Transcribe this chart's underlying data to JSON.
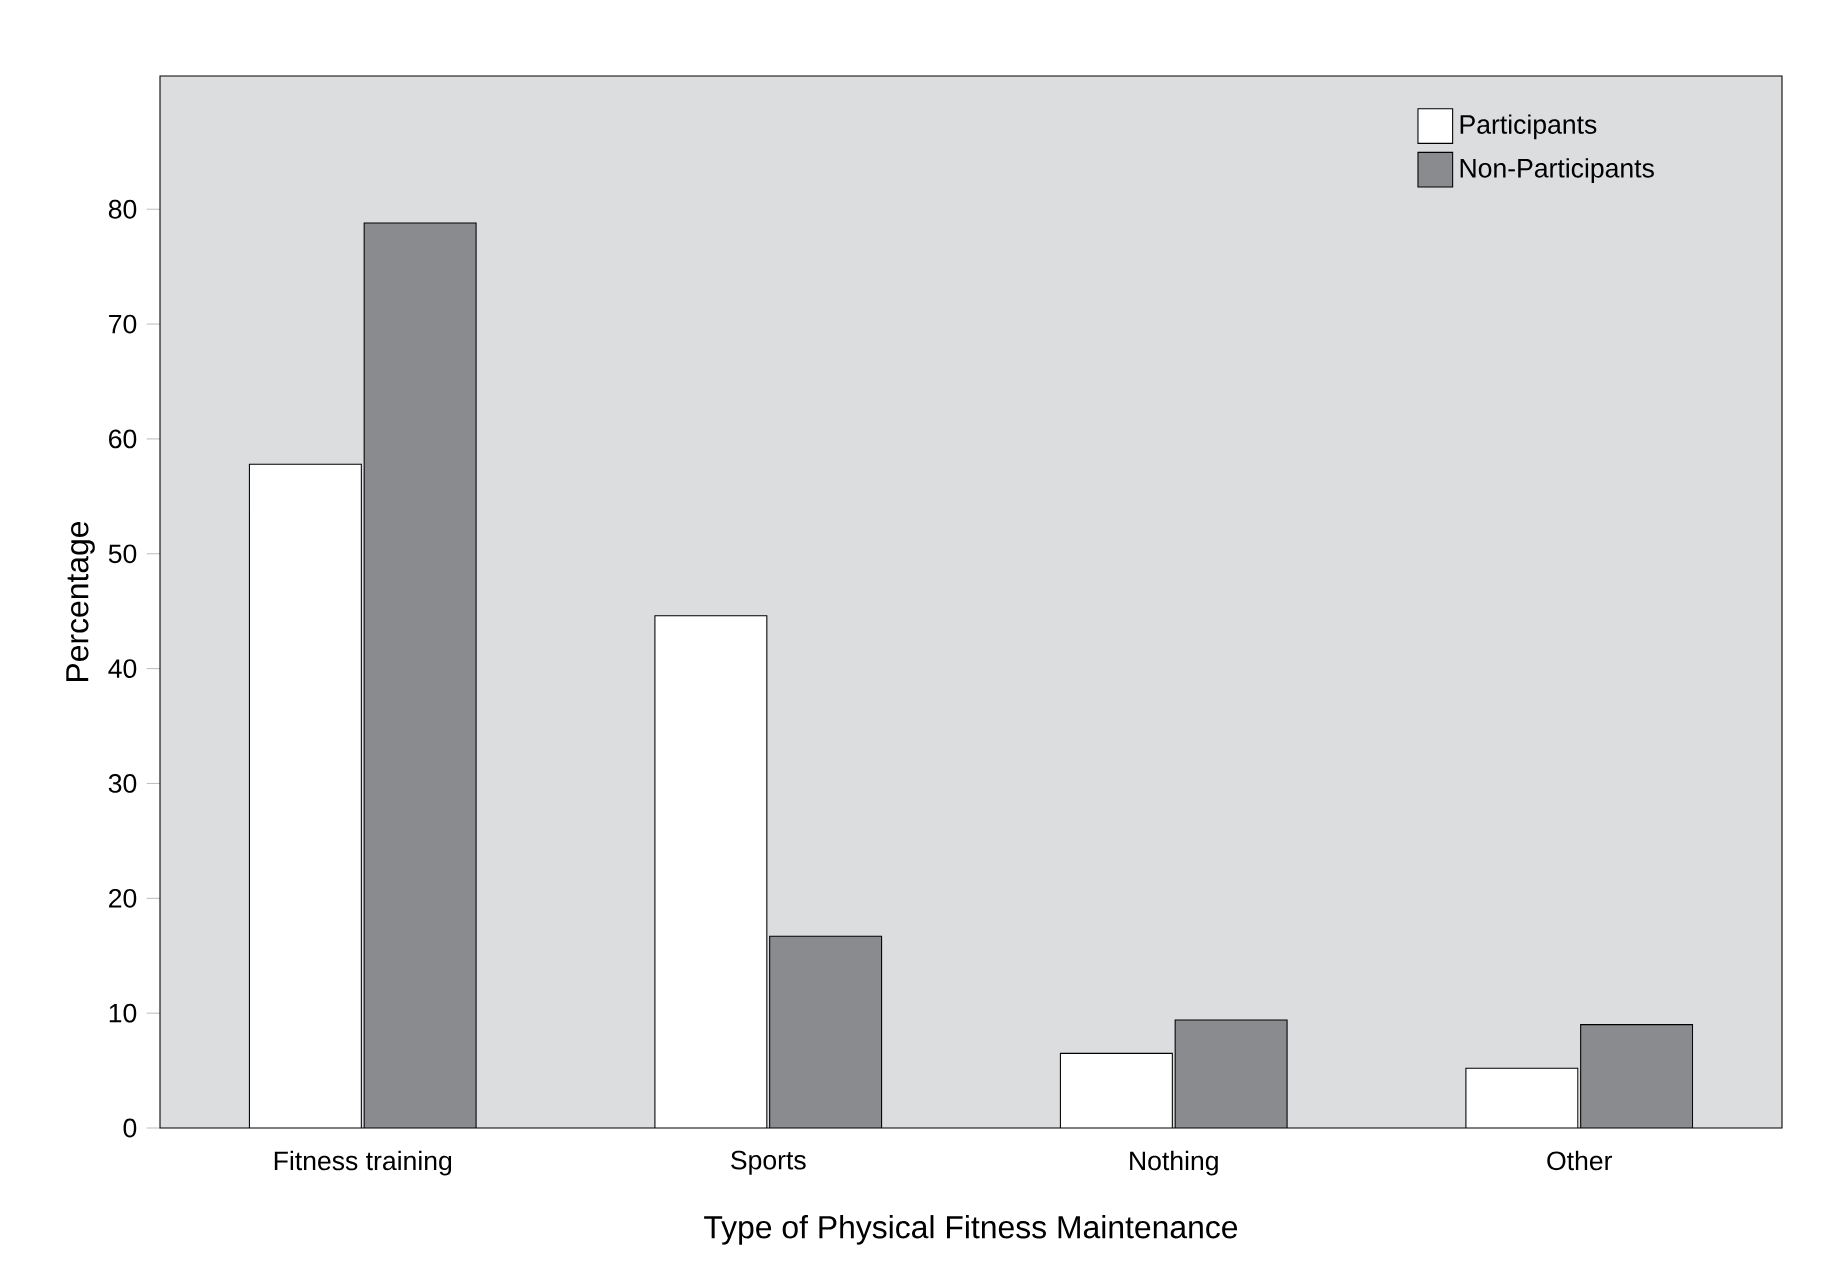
{
  "chart_data": {
    "type": "bar",
    "xlabel": "Type of Physical Fitness Maintenance",
    "ylabel": "Percentage",
    "categories": [
      "Fitness training",
      "Sports",
      "Nothing",
      "Other"
    ],
    "series": [
      {
        "name": "Participants",
        "color": "#ffffff",
        "values": [
          57.8,
          44.6,
          6.5,
          5.2
        ]
      },
      {
        "name": "Non-Participants",
        "color": "#8a8b8e",
        "values": [
          78.8,
          16.7,
          9.4,
          9.0
        ]
      }
    ],
    "ylim": [
      0,
      91.6
    ],
    "yticks": [
      0,
      10,
      20,
      30,
      40,
      50,
      60,
      70,
      80
    ],
    "legend": "top right"
  }
}
